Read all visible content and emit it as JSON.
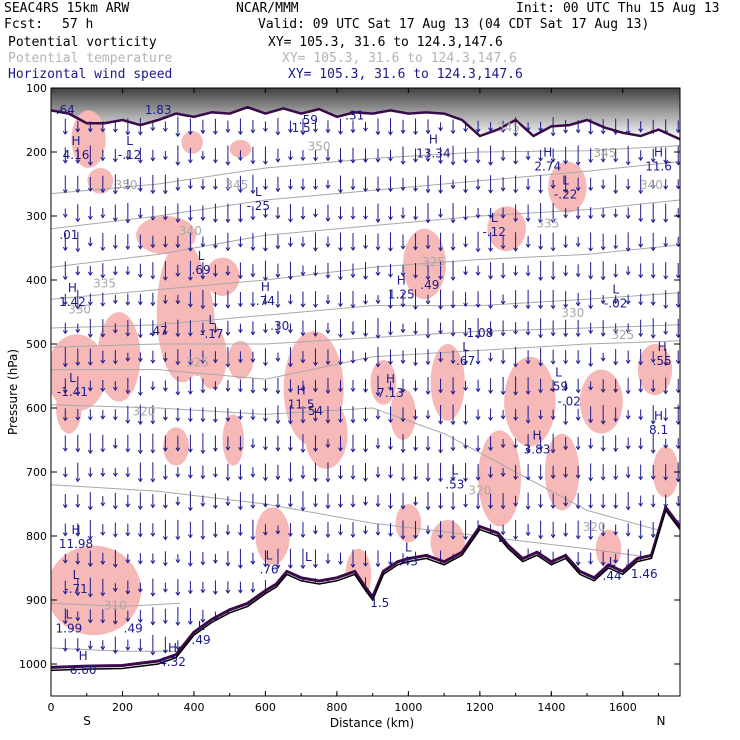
{
  "header": {
    "model": "SEAC4RS 15km ARW",
    "org": "NCAR/MMM",
    "init": "Init: 00 UTC Thu 15 Aug 13",
    "fcst_label": "Fcst:",
    "fcst_value": "57 h",
    "valid": "Valid: 09 UTC Sat 17 Aug 13 (04 CDT Sat 17 Aug 13)",
    "fields": [
      {
        "name": "Potential vorticity",
        "xy": "XY= 105.3, 31.6 to 124.3,147.6",
        "color": "#000000"
      },
      {
        "name": "Potential temperature",
        "xy": "XY= 105.3, 31.6 to 124.3,147.6",
        "color": "#b4b4b4"
      },
      {
        "name": "Horizontal wind speed",
        "xy": "XY= 105.3, 31.6 to 124.3,147.6",
        "color": "#1a1a8c"
      }
    ]
  },
  "chart_data": {
    "type": "cross-section",
    "xlabel": "Distance (km)",
    "ylabel": "Pressure (hPa)",
    "xlim": [
      0,
      1760
    ],
    "ylim": [
      1050,
      100
    ],
    "x_ticks": [
      0,
      200,
      400,
      600,
      800,
      1000,
      1200,
      1400,
      1600
    ],
    "y_ticks": [
      100,
      200,
      300,
      400,
      500,
      600,
      700,
      800,
      900,
      1000
    ],
    "end_labels": {
      "left": "S",
      "right": "N"
    },
    "colors": {
      "pv_shade": "#f7b8b8",
      "terrain": "#000000",
      "theta": "#a8a8a8",
      "wind": "#1a1a8c",
      "pv_contour": "#3a0a4a"
    },
    "terrain": [
      [
        0,
        1010
      ],
      [
        100,
        1008
      ],
      [
        200,
        1007
      ],
      [
        300,
        1000
      ],
      [
        350,
        990
      ],
      [
        400,
        955
      ],
      [
        450,
        935
      ],
      [
        500,
        920
      ],
      [
        550,
        910
      ],
      [
        600,
        890
      ],
      [
        630,
        880
      ],
      [
        660,
        860
      ],
      [
        700,
        870
      ],
      [
        750,
        875
      ],
      [
        800,
        870
      ],
      [
        850,
        860
      ],
      [
        880,
        885
      ],
      [
        900,
        900
      ],
      [
        930,
        860
      ],
      [
        970,
        845
      ],
      [
        1000,
        840
      ],
      [
        1050,
        835
      ],
      [
        1100,
        845
      ],
      [
        1150,
        830
      ],
      [
        1200,
        790
      ],
      [
        1250,
        800
      ],
      [
        1280,
        820
      ],
      [
        1320,
        840
      ],
      [
        1360,
        830
      ],
      [
        1400,
        845
      ],
      [
        1440,
        835
      ],
      [
        1480,
        860
      ],
      [
        1520,
        870
      ],
      [
        1560,
        850
      ],
      [
        1600,
        860
      ],
      [
        1640,
        840
      ],
      [
        1680,
        835
      ],
      [
        1720,
        760
      ],
      [
        1760,
        790
      ]
    ],
    "tropopause_pv": [
      [
        0,
        135
      ],
      [
        50,
        140
      ],
      [
        100,
        155
      ],
      [
        150,
        155
      ],
      [
        200,
        150
      ],
      [
        250,
        158
      ],
      [
        300,
        150
      ],
      [
        350,
        140
      ],
      [
        400,
        145
      ],
      [
        450,
        138
      ],
      [
        500,
        140
      ],
      [
        550,
        130
      ],
      [
        600,
        140
      ],
      [
        650,
        132
      ],
      [
        700,
        140
      ],
      [
        750,
        133
      ],
      [
        800,
        145
      ],
      [
        850,
        138
      ],
      [
        900,
        140
      ],
      [
        950,
        135
      ],
      [
        1000,
        140
      ],
      [
        1050,
        138
      ],
      [
        1100,
        140
      ],
      [
        1150,
        150
      ],
      [
        1200,
        175
      ],
      [
        1250,
        165
      ],
      [
        1300,
        150
      ],
      [
        1350,
        175
      ],
      [
        1400,
        160
      ],
      [
        1450,
        158
      ],
      [
        1500,
        150
      ],
      [
        1550,
        162
      ],
      [
        1600,
        170
      ],
      [
        1650,
        175
      ],
      [
        1700,
        165
      ],
      [
        1760,
        180
      ]
    ],
    "theta_labels": [
      {
        "x": 210,
        "p": 258,
        "text": "350"
      },
      {
        "x": 750,
        "p": 198,
        "text": "350"
      },
      {
        "x": 1280,
        "p": 168,
        "text": "345"
      },
      {
        "x": 1550,
        "p": 208,
        "text": "345"
      },
      {
        "x": 520,
        "p": 258,
        "text": "345"
      },
      {
        "x": 1680,
        "p": 258,
        "text": "340"
      },
      {
        "x": 390,
        "p": 330,
        "text": "340"
      },
      {
        "x": 1390,
        "p": 318,
        "text": "335"
      },
      {
        "x": 150,
        "p": 412,
        "text": "335"
      },
      {
        "x": 1070,
        "p": 378,
        "text": "325"
      },
      {
        "x": 80,
        "p": 452,
        "text": "330"
      },
      {
        "x": 1460,
        "p": 458,
        "text": "330"
      },
      {
        "x": 1600,
        "p": 492,
        "text": "325"
      },
      {
        "x": 410,
        "p": 535,
        "text": "325"
      },
      {
        "x": 260,
        "p": 612,
        "text": "320"
      },
      {
        "x": 1200,
        "p": 735,
        "text": "320"
      },
      {
        "x": 1520,
        "p": 792,
        "text": "320"
      },
      {
        "x": 180,
        "p": 915,
        "text": "310"
      }
    ],
    "extrema": [
      {
        "x": 70,
        "p": 200,
        "type": "H",
        "value": "4.16"
      },
      {
        "x": 220,
        "p": 200,
        "type": "L",
        "value": "-.12"
      },
      {
        "x": 50,
        "p": 325,
        "type": "",
        "value": ".01"
      },
      {
        "x": 60,
        "p": 430,
        "type": "H",
        "value": "1.42"
      },
      {
        "x": 300,
        "p": 475,
        "type": "",
        "value": ".47"
      },
      {
        "x": 450,
        "p": 480,
        "type": "L",
        "value": "-.17"
      },
      {
        "x": 580,
        "p": 280,
        "type": "L",
        "value": "-.25"
      },
      {
        "x": 420,
        "p": 380,
        "type": "L",
        "value": ".69"
      },
      {
        "x": 600,
        "p": 428,
        "type": "H",
        "value": ".74"
      },
      {
        "x": 640,
        "p": 467,
        "type": "",
        "value": ".30"
      },
      {
        "x": 980,
        "p": 418,
        "type": "H",
        "value": "1.25"
      },
      {
        "x": 1060,
        "p": 403,
        "type": "",
        "value": ".49"
      },
      {
        "x": 1200,
        "p": 478,
        "type": "",
        "value": "1.08"
      },
      {
        "x": 1160,
        "p": 522,
        "type": "L",
        "value": ".67"
      },
      {
        "x": 700,
        "p": 590,
        "type": "H",
        "value": "11.5"
      },
      {
        "x": 740,
        "p": 600,
        "type": "",
        "value": "54"
      },
      {
        "x": 950,
        "p": 572,
        "type": "H",
        "value": "7.13"
      },
      {
        "x": 60,
        "p": 570,
        "type": "L",
        "value": "-1.41"
      },
      {
        "x": 1360,
        "p": 660,
        "type": "H",
        "value": "3.83"
      },
      {
        "x": 1130,
        "p": 715,
        "type": "L",
        "value": ".53"
      },
      {
        "x": 1420,
        "p": 562,
        "type": "L",
        "value": ".59"
      },
      {
        "x": 1450,
        "p": 585,
        "type": "",
        "value": "-.02"
      },
      {
        "x": 1710,
        "p": 522,
        "type": "H",
        "value": ".55"
      },
      {
        "x": 1700,
        "p": 630,
        "type": "H",
        "value": "8.1"
      },
      {
        "x": 1390,
        "p": 218,
        "type": "H",
        "value": "2.74"
      },
      {
        "x": 1070,
        "p": 198,
        "type": "H",
        "value": "13.34"
      },
      {
        "x": 1440,
        "p": 262,
        "type": "L",
        "value": "-.22"
      },
      {
        "x": 1700,
        "p": 218,
        "type": "H",
        "value": "11.6"
      },
      {
        "x": 1240,
        "p": 320,
        "type": "L",
        "value": "-.12"
      },
      {
        "x": 1580,
        "p": 432,
        "type": "L",
        "value": "-.02"
      },
      {
        "x": 70,
        "p": 808,
        "type": "H",
        "value": "11.98"
      },
      {
        "x": 70,
        "p": 878,
        "type": "L",
        "value": "-.71"
      },
      {
        "x": 50,
        "p": 940,
        "type": "L",
        "value": "1.99"
      },
      {
        "x": 230,
        "p": 940,
        "type": "",
        "value": ".49"
      },
      {
        "x": 340,
        "p": 992,
        "type": "H",
        "value": "4.32"
      },
      {
        "x": 420,
        "p": 958,
        "type": "L",
        "value": ".49"
      },
      {
        "x": 610,
        "p": 848,
        "type": "L",
        "value": ".76"
      },
      {
        "x": 720,
        "p": 850,
        "type": "L",
        "value": ""
      },
      {
        "x": 1000,
        "p": 835,
        "type": "L",
        "value": ".43"
      },
      {
        "x": 920,
        "p": 900,
        "type": "",
        "value": "1.5"
      },
      {
        "x": 1260,
        "p": 820,
        "type": "L",
        "value": ""
      },
      {
        "x": 1570,
        "p": 858,
        "type": "L",
        "value": ".44"
      },
      {
        "x": 1660,
        "p": 855,
        "type": "",
        "value": "1.46"
      },
      {
        "x": 90,
        "p": 1005,
        "type": "H",
        "value": "6.60"
      },
      {
        "x": 40,
        "p": 130,
        "type": "",
        "value": ".64"
      },
      {
        "x": 300,
        "p": 130,
        "type": "",
        "value": "1.83"
      },
      {
        "x": 700,
        "p": 158,
        "type": "",
        "value": "1.5"
      },
      {
        "x": 720,
        "p": 145,
        "type": "",
        "value": ".59"
      },
      {
        "x": 850,
        "p": 138,
        "type": "",
        "value": ".31"
      }
    ]
  }
}
